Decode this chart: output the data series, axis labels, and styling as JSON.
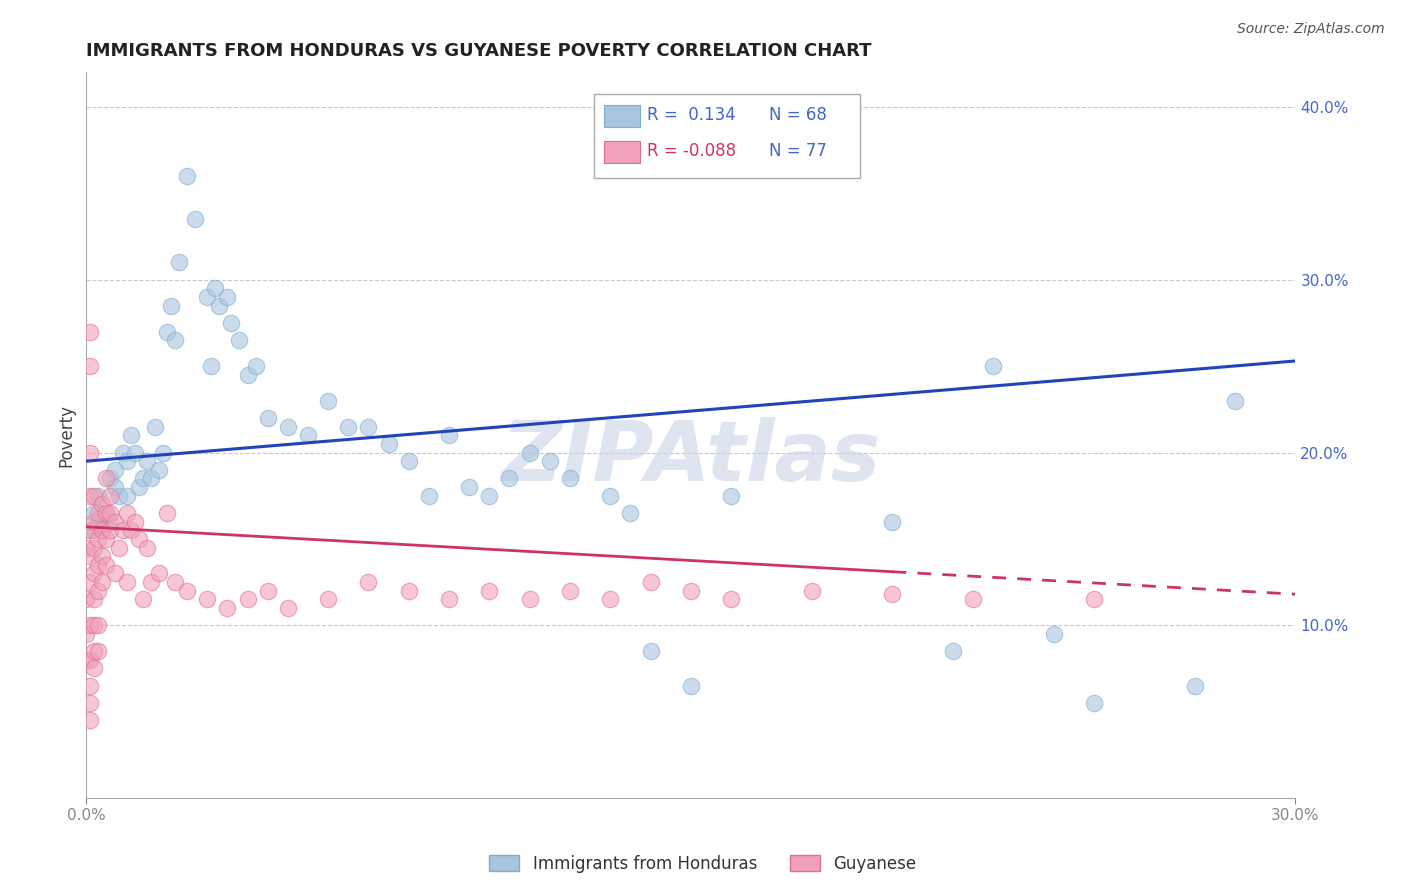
{
  "title": "IMMIGRANTS FROM HONDURAS VS GUYANESE POVERTY CORRELATION CHART",
  "source": "Source: ZipAtlas.com",
  "ylabel": "Poverty",
  "xlim": [
    0.0,
    0.3
  ],
  "ylim": [
    0.0,
    0.42
  ],
  "xticks": [
    0.0,
    0.3
  ],
  "xticklabels": [
    "0.0%",
    "30.0%"
  ],
  "yticks": [
    0.1,
    0.2,
    0.3,
    0.4
  ],
  "yticklabels": [
    "10.0%",
    "20.0%",
    "30.0%",
    "40.0%"
  ],
  "series1_label": "Immigrants from Honduras",
  "series2_label": "Guyanese",
  "series1_color": "#aac4e0",
  "series2_color": "#f0a0b8",
  "series1_edge": "#7aafd0",
  "series2_edge": "#e07090",
  "background_color": "#ffffff",
  "grid_color": "#bbbbbb",
  "watermark": "ZIPAtlas",
  "watermark_color": "#c8d4e8",
  "title_color": "#222222",
  "axis_label_color": "#444444",
  "tick_color": "#4466cc",
  "legend_box_blue": "#aac4e0",
  "legend_box_pink": "#f0a0b8",
  "legend_text_color": "#4466cc",
  "legend_R1": "R =  0.134",
  "legend_N1": "N = 68",
  "legend_R2": "R = -0.088",
  "legend_N2": "N = 77",
  "blue_line_x": [
    0.0,
    0.3
  ],
  "blue_line_y": [
    0.195,
    0.253
  ],
  "pink_line_x": [
    0.0,
    0.3
  ],
  "pink_line_y": [
    0.157,
    0.118
  ],
  "pink_line_dashed_start": 0.2,
  "blue_scatter": [
    [
      0.001,
      0.155
    ],
    [
      0.002,
      0.165
    ],
    [
      0.002,
      0.155
    ],
    [
      0.003,
      0.16
    ],
    [
      0.003,
      0.175
    ],
    [
      0.004,
      0.165
    ],
    [
      0.004,
      0.155
    ],
    [
      0.005,
      0.165
    ],
    [
      0.006,
      0.16
    ],
    [
      0.006,
      0.185
    ],
    [
      0.007,
      0.19
    ],
    [
      0.007,
      0.18
    ],
    [
      0.008,
      0.175
    ],
    [
      0.009,
      0.2
    ],
    [
      0.01,
      0.195
    ],
    [
      0.01,
      0.175
    ],
    [
      0.011,
      0.21
    ],
    [
      0.012,
      0.2
    ],
    [
      0.013,
      0.18
    ],
    [
      0.014,
      0.185
    ],
    [
      0.015,
      0.195
    ],
    [
      0.016,
      0.185
    ],
    [
      0.017,
      0.215
    ],
    [
      0.018,
      0.19
    ],
    [
      0.019,
      0.2
    ],
    [
      0.02,
      0.27
    ],
    [
      0.021,
      0.285
    ],
    [
      0.022,
      0.265
    ],
    [
      0.023,
      0.31
    ],
    [
      0.025,
      0.36
    ],
    [
      0.027,
      0.335
    ],
    [
      0.03,
      0.29
    ],
    [
      0.031,
      0.25
    ],
    [
      0.032,
      0.295
    ],
    [
      0.033,
      0.285
    ],
    [
      0.035,
      0.29
    ],
    [
      0.036,
      0.275
    ],
    [
      0.038,
      0.265
    ],
    [
      0.04,
      0.245
    ],
    [
      0.042,
      0.25
    ],
    [
      0.045,
      0.22
    ],
    [
      0.05,
      0.215
    ],
    [
      0.055,
      0.21
    ],
    [
      0.06,
      0.23
    ],
    [
      0.065,
      0.215
    ],
    [
      0.07,
      0.215
    ],
    [
      0.075,
      0.205
    ],
    [
      0.08,
      0.195
    ],
    [
      0.085,
      0.175
    ],
    [
      0.09,
      0.21
    ],
    [
      0.095,
      0.18
    ],
    [
      0.1,
      0.175
    ],
    [
      0.105,
      0.185
    ],
    [
      0.11,
      0.2
    ],
    [
      0.115,
      0.195
    ],
    [
      0.12,
      0.185
    ],
    [
      0.13,
      0.175
    ],
    [
      0.135,
      0.165
    ],
    [
      0.14,
      0.085
    ],
    [
      0.15,
      0.065
    ],
    [
      0.16,
      0.175
    ],
    [
      0.2,
      0.16
    ],
    [
      0.215,
      0.085
    ],
    [
      0.225,
      0.25
    ],
    [
      0.24,
      0.095
    ],
    [
      0.25,
      0.055
    ],
    [
      0.275,
      0.065
    ],
    [
      0.285,
      0.23
    ]
  ],
  "pink_scatter": [
    [
      0.0,
      0.145
    ],
    [
      0.0,
      0.115
    ],
    [
      0.0,
      0.095
    ],
    [
      0.0,
      0.08
    ],
    [
      0.001,
      0.27
    ],
    [
      0.001,
      0.25
    ],
    [
      0.001,
      0.2
    ],
    [
      0.001,
      0.175
    ],
    [
      0.001,
      0.155
    ],
    [
      0.001,
      0.14
    ],
    [
      0.001,
      0.125
    ],
    [
      0.001,
      0.1
    ],
    [
      0.001,
      0.08
    ],
    [
      0.001,
      0.065
    ],
    [
      0.001,
      0.055
    ],
    [
      0.001,
      0.045
    ],
    [
      0.002,
      0.175
    ],
    [
      0.002,
      0.16
    ],
    [
      0.002,
      0.145
    ],
    [
      0.002,
      0.13
    ],
    [
      0.002,
      0.115
    ],
    [
      0.002,
      0.1
    ],
    [
      0.002,
      0.085
    ],
    [
      0.002,
      0.075
    ],
    [
      0.003,
      0.165
    ],
    [
      0.003,
      0.15
    ],
    [
      0.003,
      0.135
    ],
    [
      0.003,
      0.12
    ],
    [
      0.003,
      0.1
    ],
    [
      0.003,
      0.085
    ],
    [
      0.004,
      0.17
    ],
    [
      0.004,
      0.155
    ],
    [
      0.004,
      0.14
    ],
    [
      0.004,
      0.125
    ],
    [
      0.005,
      0.185
    ],
    [
      0.005,
      0.165
    ],
    [
      0.005,
      0.15
    ],
    [
      0.005,
      0.135
    ],
    [
      0.006,
      0.175
    ],
    [
      0.006,
      0.165
    ],
    [
      0.006,
      0.155
    ],
    [
      0.007,
      0.16
    ],
    [
      0.007,
      0.13
    ],
    [
      0.008,
      0.145
    ],
    [
      0.009,
      0.155
    ],
    [
      0.01,
      0.165
    ],
    [
      0.01,
      0.125
    ],
    [
      0.011,
      0.155
    ],
    [
      0.012,
      0.16
    ],
    [
      0.013,
      0.15
    ],
    [
      0.014,
      0.115
    ],
    [
      0.015,
      0.145
    ],
    [
      0.016,
      0.125
    ],
    [
      0.018,
      0.13
    ],
    [
      0.02,
      0.165
    ],
    [
      0.022,
      0.125
    ],
    [
      0.025,
      0.12
    ],
    [
      0.03,
      0.115
    ],
    [
      0.035,
      0.11
    ],
    [
      0.04,
      0.115
    ],
    [
      0.045,
      0.12
    ],
    [
      0.05,
      0.11
    ],
    [
      0.06,
      0.115
    ],
    [
      0.07,
      0.125
    ],
    [
      0.08,
      0.12
    ],
    [
      0.09,
      0.115
    ],
    [
      0.1,
      0.12
    ],
    [
      0.11,
      0.115
    ],
    [
      0.12,
      0.12
    ],
    [
      0.13,
      0.115
    ],
    [
      0.14,
      0.125
    ],
    [
      0.15,
      0.12
    ],
    [
      0.16,
      0.115
    ],
    [
      0.18,
      0.12
    ],
    [
      0.2,
      0.118
    ],
    [
      0.22,
      0.115
    ],
    [
      0.25,
      0.115
    ]
  ]
}
